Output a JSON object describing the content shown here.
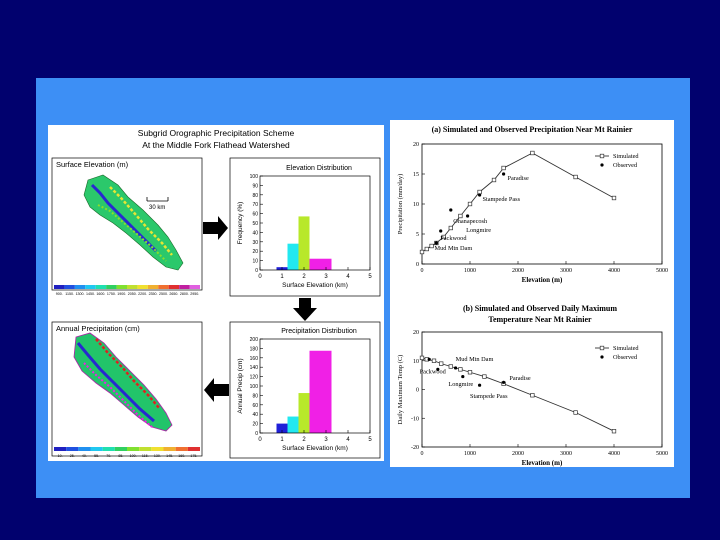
{
  "left_figure": {
    "title_line1": "Subgrid Orographic Precipitation Scheme",
    "title_line2": "At the Middle Fork Flathead Watershed",
    "elev_map_label": "Surface Elevation (m)",
    "scale_label": "30 km",
    "elev_colorbar_ticks": [
      "900.",
      "1150.",
      "1300.",
      "1450.",
      "1600.",
      "1750.",
      "1900.",
      "2050.",
      "2200.",
      "2350.",
      "2500.",
      "2650.",
      "2800.",
      "2950."
    ],
    "precip_map_label": "Annual Precipitation (cm)",
    "precip_colorbar_ticks": [
      "10.",
      "25.",
      "40.",
      "55.",
      "70.",
      "85.",
      "100.",
      "115.",
      "130.",
      "145.",
      "160.",
      "175."
    ],
    "colors": {
      "arrow": "#000000"
    }
  },
  "chart_data": [
    {
      "id": "elev-dist",
      "type": "bar",
      "title": "Elevation Distribution",
      "xlabel": "Surface Elevation (km)",
      "ylabel": "Frequency (%)",
      "xlim": [
        0,
        5
      ],
      "ylim": [
        0,
        100
      ],
      "xticks": [
        0,
        1,
        2,
        3,
        4,
        5
      ],
      "yticks": [
        0,
        10,
        20,
        30,
        40,
        50,
        60,
        70,
        80,
        90,
        100
      ],
      "bars": [
        {
          "x0": 0.75,
          "x1": 1.25,
          "value": 3,
          "color": "#2020d8"
        },
        {
          "x0": 1.25,
          "x1": 1.75,
          "value": 28,
          "color": "#22e8f0"
        },
        {
          "x0": 1.75,
          "x1": 2.25,
          "value": 57,
          "color": "#b8e82a"
        },
        {
          "x0": 2.25,
          "x1": 3.25,
          "value": 12,
          "color": "#f020e6"
        }
      ]
    },
    {
      "id": "precip-dist",
      "type": "bar",
      "title": "Precipitation Distribution",
      "xlabel": "Surface Elevation (km)",
      "ylabel": "Annual Precip (cm)",
      "xlim": [
        0,
        5
      ],
      "ylim": [
        0,
        200
      ],
      "xticks": [
        0,
        1,
        2,
        3,
        4,
        5
      ],
      "yticks": [
        0,
        20,
        40,
        60,
        80,
        100,
        120,
        140,
        160,
        180,
        200
      ],
      "bars": [
        {
          "x0": 0.75,
          "x1": 1.25,
          "value": 20,
          "color": "#2020d8"
        },
        {
          "x0": 1.25,
          "x1": 1.75,
          "value": 35,
          "color": "#22e8f0"
        },
        {
          "x0": 1.75,
          "x1": 2.25,
          "value": 85,
          "color": "#b8e82a"
        },
        {
          "x0": 2.25,
          "x1": 3.25,
          "value": 175,
          "color": "#f020e6"
        }
      ]
    },
    {
      "id": "rainier-precip",
      "type": "line",
      "title": "(a) Simulated and Observed Precipitation Near Mt Rainier",
      "xlabel": "Elevation (m)",
      "ylabel": "Precipitation (mm/day)",
      "xlim": [
        0,
        5000
      ],
      "ylim": [
        0,
        20
      ],
      "xticks": [
        0,
        1000,
        2000,
        3000,
        4000,
        5000
      ],
      "yticks": [
        0,
        5,
        10,
        15,
        20
      ],
      "legend": [
        "Simulated",
        "Observed"
      ],
      "simulated": {
        "x": [
          0,
          100,
          200,
          300,
          450,
          600,
          800,
          1000,
          1200,
          1500,
          1700,
          2300,
          3200,
          4000
        ],
        "y": [
          2,
          2.5,
          3,
          3.5,
          4.5,
          6,
          8,
          10,
          12,
          14,
          16,
          18.5,
          14.5,
          11
        ]
      },
      "observed": {
        "x": [
          300,
          390,
          600,
          950,
          1200,
          1700
        ],
        "y": [
          3.5,
          5.5,
          9,
          8,
          11.5,
          15
        ]
      },
      "annotations": [
        {
          "text": "Paradise",
          "x": 1780,
          "y": 14
        },
        {
          "text": "Stampede Pass",
          "x": 1260,
          "y": 10.5
        },
        {
          "text": "Ohanapecosh",
          "x": 650,
          "y": 6.8
        },
        {
          "text": "Longmire",
          "x": 920,
          "y": 5.3
        },
        {
          "text": "Packwood",
          "x": 380,
          "y": 4
        },
        {
          "text": "Mud Mtn Dam",
          "x": 260,
          "y": 2.3
        }
      ]
    },
    {
      "id": "rainier-temp",
      "type": "line",
      "title": "(b) Simulated and Observed Daily Maximum Temperature Near Mt Rainier",
      "title_line1": "(b) Simulated and Observed Daily Maximum",
      "title_line2": "Temperature Near Mt Rainier",
      "xlabel": "Elevation (m)",
      "ylabel": "Daily Maximum Temp (C)",
      "xlim": [
        0,
        5000
      ],
      "ylim": [
        -20,
        20
      ],
      "xticks": [
        0,
        1000,
        2000,
        3000,
        4000,
        5000
      ],
      "yticks": [
        -20,
        -10,
        0,
        10,
        20
      ],
      "legend": [
        "Simulated",
        "Observed"
      ],
      "simulated": {
        "x": [
          0,
          100,
          250,
          400,
          600,
          800,
          1000,
          1300,
          1700,
          2300,
          3200,
          4000
        ],
        "y": [
          11,
          10.5,
          10,
          9,
          8,
          7,
          6,
          4.5,
          2,
          -2,
          -8,
          -14.5
        ]
      },
      "observed": {
        "x": [
          150,
          330,
          700,
          850,
          1200,
          1700
        ],
        "y": [
          10.5,
          7,
          7.5,
          4.5,
          1.5,
          2.5
        ]
      },
      "annotations": [
        {
          "text": "Mud Mtn Dam",
          "x": 700,
          "y": 10
        },
        {
          "text": "Packwood",
          "x": -50,
          "y": 5.5
        },
        {
          "text": "Longmire",
          "x": 550,
          "y": 1.3
        },
        {
          "text": "Paradise",
          "x": 1820,
          "y": 3.3
        },
        {
          "text": "Stampede Pass",
          "x": 1000,
          "y": -3
        }
      ]
    }
  ]
}
